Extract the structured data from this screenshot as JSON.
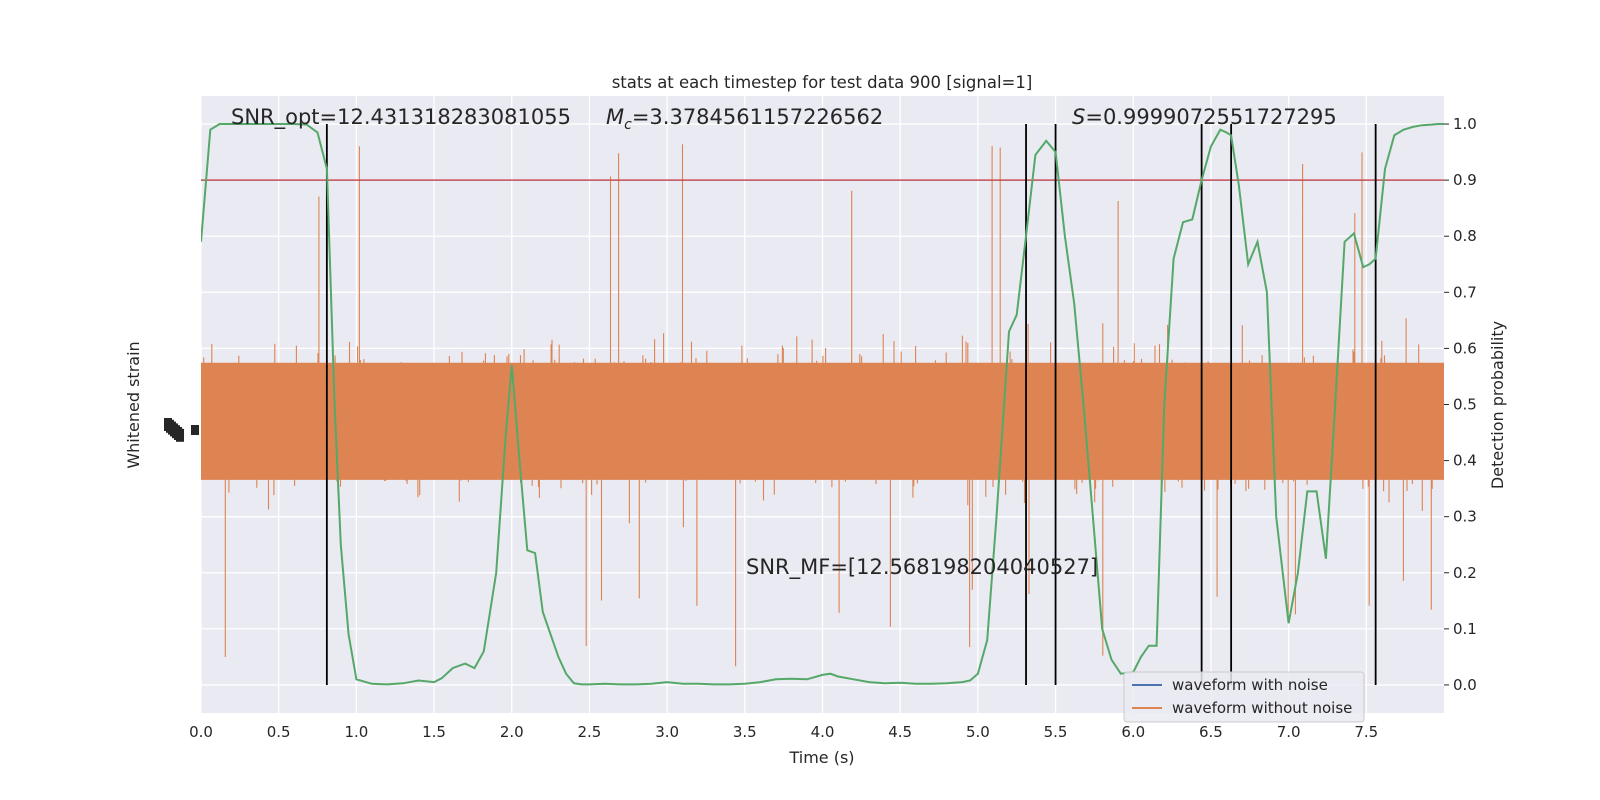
{
  "chart_data": {
    "type": "line",
    "title": "stats at each timestep for test data 900 [signal=1]",
    "xlabel": "Time (s)",
    "ylabel_left": "Whitened strain",
    "ylabel_right": "Detection probability",
    "xlim": [
      0.0,
      8.0
    ],
    "ylim_right": [
      -0.05,
      1.05
    ],
    "x_ticks": [
      "0.0",
      "0.5",
      "1.0",
      "1.5",
      "2.0",
      "2.5",
      "3.0",
      "3.5",
      "4.0",
      "4.5",
      "5.0",
      "5.5",
      "6.0",
      "6.5",
      "7.0",
      "7.5"
    ],
    "y_ticks_right": [
      "0.0",
      "0.1",
      "0.2",
      "0.3",
      "0.4",
      "0.5",
      "0.6",
      "0.7",
      "0.8",
      "0.9",
      "1.0"
    ],
    "grid": true,
    "legend_position": "bottom-right",
    "annotations": {
      "snr_opt": "SNR_opt=12.431318283081055",
      "mc_symbol": "M",
      "mc_sub": "c",
      "mc_value": "=3.3784561157226562",
      "s_symbol": "S",
      "s_value": "=0.9999072551727295",
      "snr_mf": "SNR_MF=[12.568198204040527]"
    },
    "threshold": 0.9,
    "vertical_lines_x": [
      0.81,
      5.31,
      5.5,
      6.44,
      6.63,
      7.56
    ],
    "series": [
      {
        "name": "waveform with noise",
        "color": "#4c72b0",
        "values": []
      },
      {
        "name": "waveform without noise",
        "color": "#dd8452",
        "noise_envelope": {
          "center": 0.47,
          "typical_low": 0.3,
          "typical_high": 0.68,
          "extreme_low": 0.01,
          "extreme_high": 1.0
        },
        "values": []
      },
      {
        "color": "#55a868",
        "x": [
          0.0,
          0.06,
          0.12,
          0.2,
          0.3,
          0.4,
          0.5,
          0.6,
          0.68,
          0.75,
          0.81,
          0.86,
          0.9,
          0.95,
          1.0,
          1.1,
          1.2,
          1.3,
          1.4,
          1.5,
          1.55,
          1.62,
          1.7,
          1.76,
          1.82,
          1.9,
          1.96,
          2.0,
          2.05,
          2.1,
          2.15,
          2.2,
          2.25,
          2.3,
          2.35,
          2.4,
          2.45,
          2.5,
          2.6,
          2.7,
          2.8,
          2.9,
          3.0,
          3.1,
          3.2,
          3.3,
          3.4,
          3.5,
          3.6,
          3.7,
          3.8,
          3.9,
          4.0,
          4.05,
          4.1,
          4.2,
          4.3,
          4.4,
          4.5,
          4.6,
          4.7,
          4.8,
          4.9,
          4.95,
          5.0,
          5.06,
          5.12,
          5.2,
          5.25,
          5.31,
          5.37,
          5.44,
          5.5,
          5.56,
          5.62,
          5.68,
          5.74,
          5.8,
          5.86,
          5.92,
          6.0,
          6.05,
          6.1,
          6.15,
          6.2,
          6.26,
          6.32,
          6.38,
          6.44,
          6.5,
          6.56,
          6.6,
          6.63,
          6.68,
          6.74,
          6.8,
          6.86,
          6.92,
          7.0,
          7.06,
          7.12,
          7.18,
          7.24,
          7.3,
          7.36,
          7.42,
          7.48,
          7.52,
          7.56,
          7.62,
          7.68,
          7.74,
          7.8,
          7.86,
          7.92,
          7.96,
          8.0
        ],
        "values": [
          0.79,
          0.99,
          1.0,
          1.0,
          1.0,
          1.0,
          1.0,
          1.0,
          0.999,
          0.985,
          0.92,
          0.5,
          0.25,
          0.09,
          0.01,
          0.002,
          0.001,
          0.003,
          0.008,
          0.005,
          0.012,
          0.03,
          0.038,
          0.03,
          0.06,
          0.2,
          0.44,
          0.57,
          0.4,
          0.24,
          0.235,
          0.13,
          0.09,
          0.05,
          0.02,
          0.003,
          0.001,
          0.001,
          0.002,
          0.001,
          0.001,
          0.002,
          0.005,
          0.002,
          0.002,
          0.001,
          0.001,
          0.002,
          0.005,
          0.01,
          0.011,
          0.01,
          0.018,
          0.02,
          0.015,
          0.01,
          0.005,
          0.003,
          0.004,
          0.002,
          0.002,
          0.003,
          0.005,
          0.008,
          0.02,
          0.08,
          0.3,
          0.63,
          0.66,
          0.8,
          0.945,
          0.97,
          0.95,
          0.8,
          0.68,
          0.5,
          0.3,
          0.1,
          0.045,
          0.02,
          0.023,
          0.05,
          0.07,
          0.07,
          0.5,
          0.76,
          0.825,
          0.83,
          0.9,
          0.96,
          0.99,
          0.985,
          0.98,
          0.89,
          0.75,
          0.79,
          0.7,
          0.3,
          0.11,
          0.2,
          0.345,
          0.345,
          0.225,
          0.5,
          0.79,
          0.805,
          0.745,
          0.75,
          0.76,
          0.92,
          0.98,
          0.99,
          0.995,
          0.998,
          0.999,
          1.0,
          1.0
        ]
      }
    ]
  }
}
